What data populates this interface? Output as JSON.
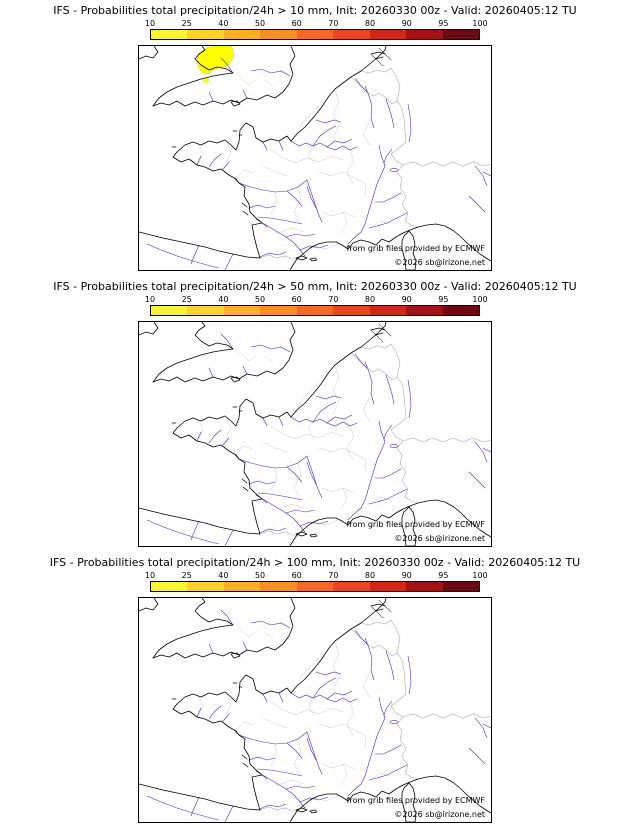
{
  "panels": [
    {
      "title": "IFS - Probabilities total precipitation/24h > 10 mm, Init: 20260330 00z - Valid: 20260405:12 TU",
      "threshold": "10 mm",
      "has_highlight_patch": true,
      "highlight_region": "yellow 10-25% patch over Wales"
    },
    {
      "title": "IFS - Probabilities total precipitation/24h > 50 mm, Init: 20260330 00z - Valid: 20260405:12 TU",
      "threshold": "50 mm",
      "has_highlight_patch": false
    },
    {
      "title": "IFS - Probabilities total precipitation/24h > 100 mm, Init: 20260330 00z - Valid: 20260405:12 TU",
      "threshold": "100 mm",
      "has_highlight_patch": false
    }
  ],
  "colorbar": {
    "ticks": [
      "10",
      "25",
      "40",
      "50",
      "60",
      "70",
      "80",
      "90",
      "95",
      "100"
    ],
    "segment_colors": [
      "#fbf335",
      "#fdd32f",
      "#fdae2b",
      "#f98e26",
      "#f26a25",
      "#e74621",
      "#d02818",
      "#a31313",
      "#6b0b10"
    ]
  },
  "credits": {
    "line1": "from grib files provided by ECMWF",
    "line2": "©2026 sb@irizone.net"
  },
  "map": {
    "coast_color": "#000000",
    "river_color": "#3333cc",
    "boundary_color": "#c0c0c0",
    "border_color": "#aaaaaa",
    "highlight_color": "#ffff00"
  }
}
